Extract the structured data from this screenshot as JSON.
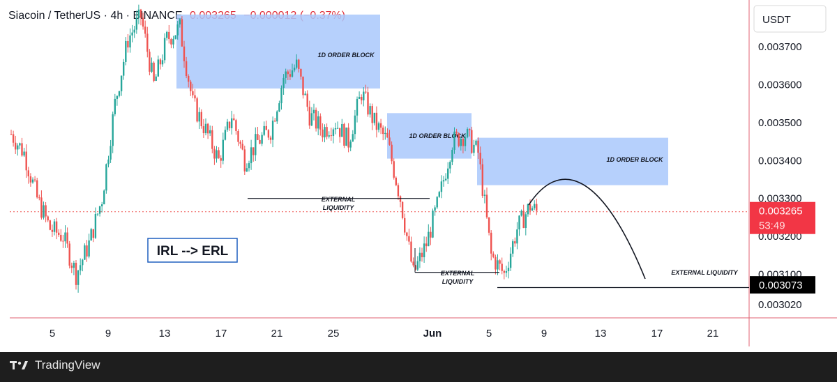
{
  "header": {
    "pair": "Siacoin / TetherUS · 4h · BINANCE",
    "price": "0.003265",
    "change": "−0.000012 (−0.37%)"
  },
  "price_axis": {
    "currency": "USDT",
    "current_price": "0.003265",
    "countdown": "53:49",
    "marker_price": "0.003073"
  },
  "annotations": {
    "order_block_1": "1D ORDER BLOCK",
    "order_block_2": "1D ORDER BLOCK",
    "order_block_3": "1D ORDER BLOCK",
    "ext_liq_1": [
      "EXTERNAL",
      "LIQUIDITY"
    ],
    "ext_liq_2": [
      "EXTERNAL",
      "LIQUIDITY"
    ],
    "ext_liq_3": "EXTERNAL LIQUIDITY",
    "irl_box": "IRL --> ERL"
  },
  "footer": {
    "brand": "TradingView"
  },
  "colors": {
    "up": "#26a69a",
    "down": "#ef5350",
    "order_block": "#a9c8fb",
    "axis_line": "#e06070",
    "price_tag": "#f23645",
    "marker_tag": "#000000",
    "irl_border": "#1f5fbf"
  },
  "chart_data": {
    "type": "candlestick",
    "ylim": [
      0.002985,
      0.003805
    ],
    "y_ticks": [
      "0.003700",
      "0.003600",
      "0.003500",
      "0.003400",
      "0.003300",
      "0.003200",
      "0.003100",
      "0.003020"
    ],
    "x_ticks": [
      "5",
      "9",
      "13",
      "17",
      "21",
      "25",
      "Jun",
      "5",
      "9",
      "13",
      "17",
      "21"
    ],
    "ohlc_anchors": [
      [
        0,
        0.00347
      ],
      [
        6,
        0.00342
      ],
      [
        12,
        0.0033
      ],
      [
        18,
        0.00322
      ],
      [
        24,
        0.0032
      ],
      [
        30,
        0.0031
      ],
      [
        36,
        0.00318
      ],
      [
        42,
        0.0033
      ],
      [
        48,
        0.00355
      ],
      [
        54,
        0.00372
      ],
      [
        60,
        0.00378
      ],
      [
        66,
        0.0036
      ],
      [
        72,
        0.00372
      ],
      [
        78,
        0.00375
      ],
      [
        84,
        0.00355
      ],
      [
        90,
        0.00348
      ],
      [
        96,
        0.0034
      ],
      [
        102,
        0.00352
      ],
      [
        108,
        0.0034
      ],
      [
        114,
        0.00345
      ],
      [
        120,
        0.00348
      ],
      [
        126,
        0.00362
      ],
      [
        132,
        0.00365
      ],
      [
        138,
        0.00352
      ],
      [
        144,
        0.00348
      ],
      [
        150,
        0.0035
      ],
      [
        156,
        0.00345
      ],
      [
        162,
        0.00358
      ],
      [
        168,
        0.0035
      ],
      [
        174,
        0.00345
      ],
      [
        180,
        0.0033
      ],
      [
        186,
        0.0031
      ],
      [
        192,
        0.00318
      ],
      [
        198,
        0.0033
      ],
      [
        204,
        0.00345
      ],
      [
        210,
        0.00347
      ],
      [
        216,
        0.00342
      ],
      [
        222,
        0.00315
      ],
      [
        228,
        0.0031
      ],
      [
        234,
        0.00322
      ],
      [
        240,
        0.00328
      ],
      [
        243,
        0.003265
      ]
    ],
    "order_blocks": [
      {
        "label": "1D ORDER BLOCK",
        "top": 0.003785,
        "bottom": 0.00359
      },
      {
        "label": "1D ORDER BLOCK",
        "top": 0.003525,
        "bottom": 0.003405
      },
      {
        "label": "1D ORDER BLOCK",
        "top": 0.00346,
        "bottom": 0.003335
      }
    ],
    "external_liquidity_levels": [
      0.0033,
      0.003105,
      0.003065
    ],
    "current_price": 0.003265
  }
}
